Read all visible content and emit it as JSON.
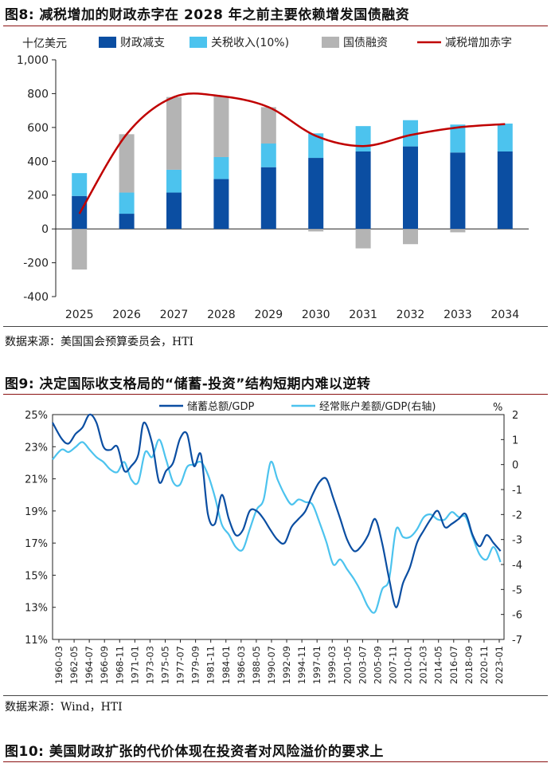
{
  "figures": [
    {
      "title": "图8:  减税增加的财政赤字在 2028 年之前主要依赖增发国债融资",
      "source": "数据来源：美国国会预算委员会，HTI"
    },
    {
      "title": "图9:  决定国际收支格局的“储蓄-投资”结构短期内难以逆转",
      "source": "数据来源：Wind，HTI"
    },
    {
      "title": "图10:  美国财政扩张的代价体现在投资者对风险溢价的要求上"
    }
  ],
  "colors": {
    "dark_blue": "#0b4ea2",
    "light_blue": "#4cc3ee",
    "gray": "#b4b4b4",
    "red": "#c00000",
    "rule": "#8a1010"
  },
  "chart_data": [
    {
      "type": "bar",
      "stacked": true,
      "unit_label": "十亿美元",
      "categories": [
        "2025",
        "2026",
        "2027",
        "2028",
        "2029",
        "2030",
        "2031",
        "2032",
        "2033",
        "2034"
      ],
      "ylim": [
        -400,
        1000
      ],
      "yticks": [
        -400,
        -200,
        0,
        200,
        400,
        600,
        800,
        1000
      ],
      "ytick_labels": [
        "-400",
        "-200",
        "0",
        "200",
        "400",
        "600",
        "800",
        "1,000"
      ],
      "legend_position": "top",
      "series": [
        {
          "name": "财政减支",
          "kind": "bar",
          "color": "#0b4ea2",
          "values": [
            195,
            90,
            215,
            295,
            365,
            420,
            458,
            488,
            452,
            458
          ]
        },
        {
          "name": "关税收入(10%)",
          "kind": "bar",
          "color": "#4cc3ee",
          "values": [
            135,
            125,
            135,
            130,
            140,
            145,
            150,
            155,
            165,
            165
          ]
        },
        {
          "name": "国债融资",
          "kind": "bar",
          "color": "#b4b4b4",
          "values": [
            -240,
            345,
            430,
            360,
            215,
            -15,
            -115,
            -90,
            -20,
            0
          ]
        },
        {
          "name": "减税增加赤字",
          "kind": "line",
          "color": "#c00000",
          "values": [
            90,
            560,
            780,
            785,
            720,
            550,
            490,
            555,
            600,
            620
          ]
        }
      ]
    },
    {
      "type": "line",
      "legend_position": "top",
      "x_tick_labels": [
        "1960-03",
        "1962-05",
        "1964-07",
        "1966-09",
        "1968-11",
        "1971-01",
        "1973-03",
        "1975-05",
        "1977-07",
        "1979-09",
        "1981-11",
        "1984-01",
        "1986-03",
        "1988-05",
        "1990-07",
        "1992-09",
        "1994-11",
        "1997-01",
        "1999-03",
        "2001-05",
        "2003-07",
        "2005-09",
        "2007-11",
        "2010-01",
        "2012-03",
        "2014-05",
        "2016-07",
        "2018-09",
        "2020-11",
        "2023-01"
      ],
      "left_axis": {
        "ylim": [
          11,
          25
        ],
        "ticks": [
          "11%",
          "13%",
          "15%",
          "17%",
          "19%",
          "21%",
          "23%",
          "25%"
        ]
      },
      "right_axis": {
        "label": "%",
        "ylim": [
          -7,
          2
        ],
        "ticks": [
          "-7",
          "-6",
          "-5",
          "-4",
          "-3",
          "-2",
          "-1",
          "0",
          "1",
          "2"
        ]
      },
      "series": [
        {
          "name": "储蓄总额/GDP",
          "axis": "left",
          "color": "#0b4ea2",
          "x": [
            1960.2,
            1961.5,
            1962.5,
            1963.5,
            1964.5,
            1965.5,
            1966.5,
            1967.5,
            1968.5,
            1969.5,
            1970.5,
            1971.5,
            1972.5,
            1973.3,
            1974.5,
            1975.5,
            1976.5,
            1977.5,
            1978.5,
            1979.5,
            1980.5,
            1981.5,
            1982.5,
            1983.5,
            1984.5,
            1985.5,
            1986.5,
            1987.5,
            1988.5,
            1989.5,
            1990.5,
            1991.5,
            1992.5,
            1993.5,
            1994.5,
            1995.5,
            1996.5,
            1997.5,
            1998.5,
            1999.5,
            2000.5,
            2001.5,
            2002.5,
            2003.5,
            2004.5,
            2005.5,
            2006.5,
            2007.5,
            2008.5,
            2009.5,
            2010.5,
            2011.5,
            2012.5,
            2013.5,
            2014.5,
            2015.5,
            2016.5,
            2017.5,
            2018.5,
            2019.5,
            2020.5,
            2021.5,
            2022.5,
            2023.5,
            2024.5
          ],
          "values": [
            24.5,
            23.5,
            23.2,
            23.8,
            24.2,
            25.0,
            24.5,
            23.0,
            22.8,
            23.0,
            21.5,
            21.8,
            22.5,
            24.5,
            23.2,
            20.8,
            21.5,
            22.0,
            23.5,
            23.8,
            21.8,
            22.5,
            18.8,
            18.2,
            20.0,
            18.5,
            17.5,
            17.8,
            19.0,
            19.0,
            18.5,
            17.8,
            17.2,
            17.0,
            18.0,
            18.5,
            19.0,
            20.0,
            20.8,
            21.0,
            19.8,
            18.5,
            17.2,
            16.5,
            16.8,
            17.5,
            18.5,
            17.0,
            14.8,
            13.0,
            14.5,
            15.5,
            17.0,
            17.8,
            18.5,
            19.0,
            18.0,
            18.2,
            18.5,
            18.8,
            17.5,
            16.8,
            17.5,
            17.0,
            16.5
          ]
        },
        {
          "name": "经常账户差额/GDP(右轴)",
          "axis": "right",
          "color": "#4cc3ee",
          "x": [
            1960.2,
            1961.5,
            1962.5,
            1963.5,
            1964.5,
            1965.5,
            1966.5,
            1967.5,
            1968.5,
            1969.5,
            1970.5,
            1971.5,
            1972.5,
            1973.5,
            1974.5,
            1975.5,
            1976.5,
            1977.5,
            1978.5,
            1979.5,
            1980.5,
            1981.5,
            1982.5,
            1983.5,
            1984.5,
            1985.5,
            1986.5,
            1987.5,
            1988.5,
            1989.5,
            1990.5,
            1991.5,
            1992.5,
            1993.5,
            1994.5,
            1995.5,
            1996.5,
            1997.5,
            1998.5,
            1999.5,
            2000.5,
            2001.5,
            2002.5,
            2003.5,
            2004.5,
            2005.5,
            2006.5,
            2007.5,
            2008.5,
            2009.5,
            2010.5,
            2011.5,
            2012.5,
            2013.5,
            2014.5,
            2015.5,
            2016.5,
            2017.5,
            2018.5,
            2019.5,
            2020.5,
            2021.5,
            2022.5,
            2023.5,
            2024.5
          ],
          "values": [
            0.2,
            0.6,
            0.5,
            0.7,
            0.9,
            0.6,
            0.3,
            0.1,
            -0.2,
            -0.3,
            0.1,
            -0.6,
            -0.7,
            0.5,
            0.3,
            1.0,
            0.2,
            -0.7,
            -0.8,
            -0.1,
            0.0,
            0.1,
            -0.4,
            -1.3,
            -2.4,
            -2.8,
            -3.3,
            -3.4,
            -2.6,
            -1.8,
            -1.4,
            0.1,
            -0.6,
            -1.2,
            -1.6,
            -1.4,
            -1.5,
            -1.6,
            -2.3,
            -3.1,
            -4.0,
            -3.8,
            -4.2,
            -4.6,
            -5.1,
            -5.7,
            -5.9,
            -5.0,
            -4.6,
            -2.6,
            -2.9,
            -2.9,
            -2.6,
            -2.1,
            -2.0,
            -2.2,
            -2.2,
            -1.9,
            -2.1,
            -2.1,
            -2.9,
            -3.6,
            -3.8,
            -3.3,
            -3.9
          ]
        }
      ]
    }
  ]
}
